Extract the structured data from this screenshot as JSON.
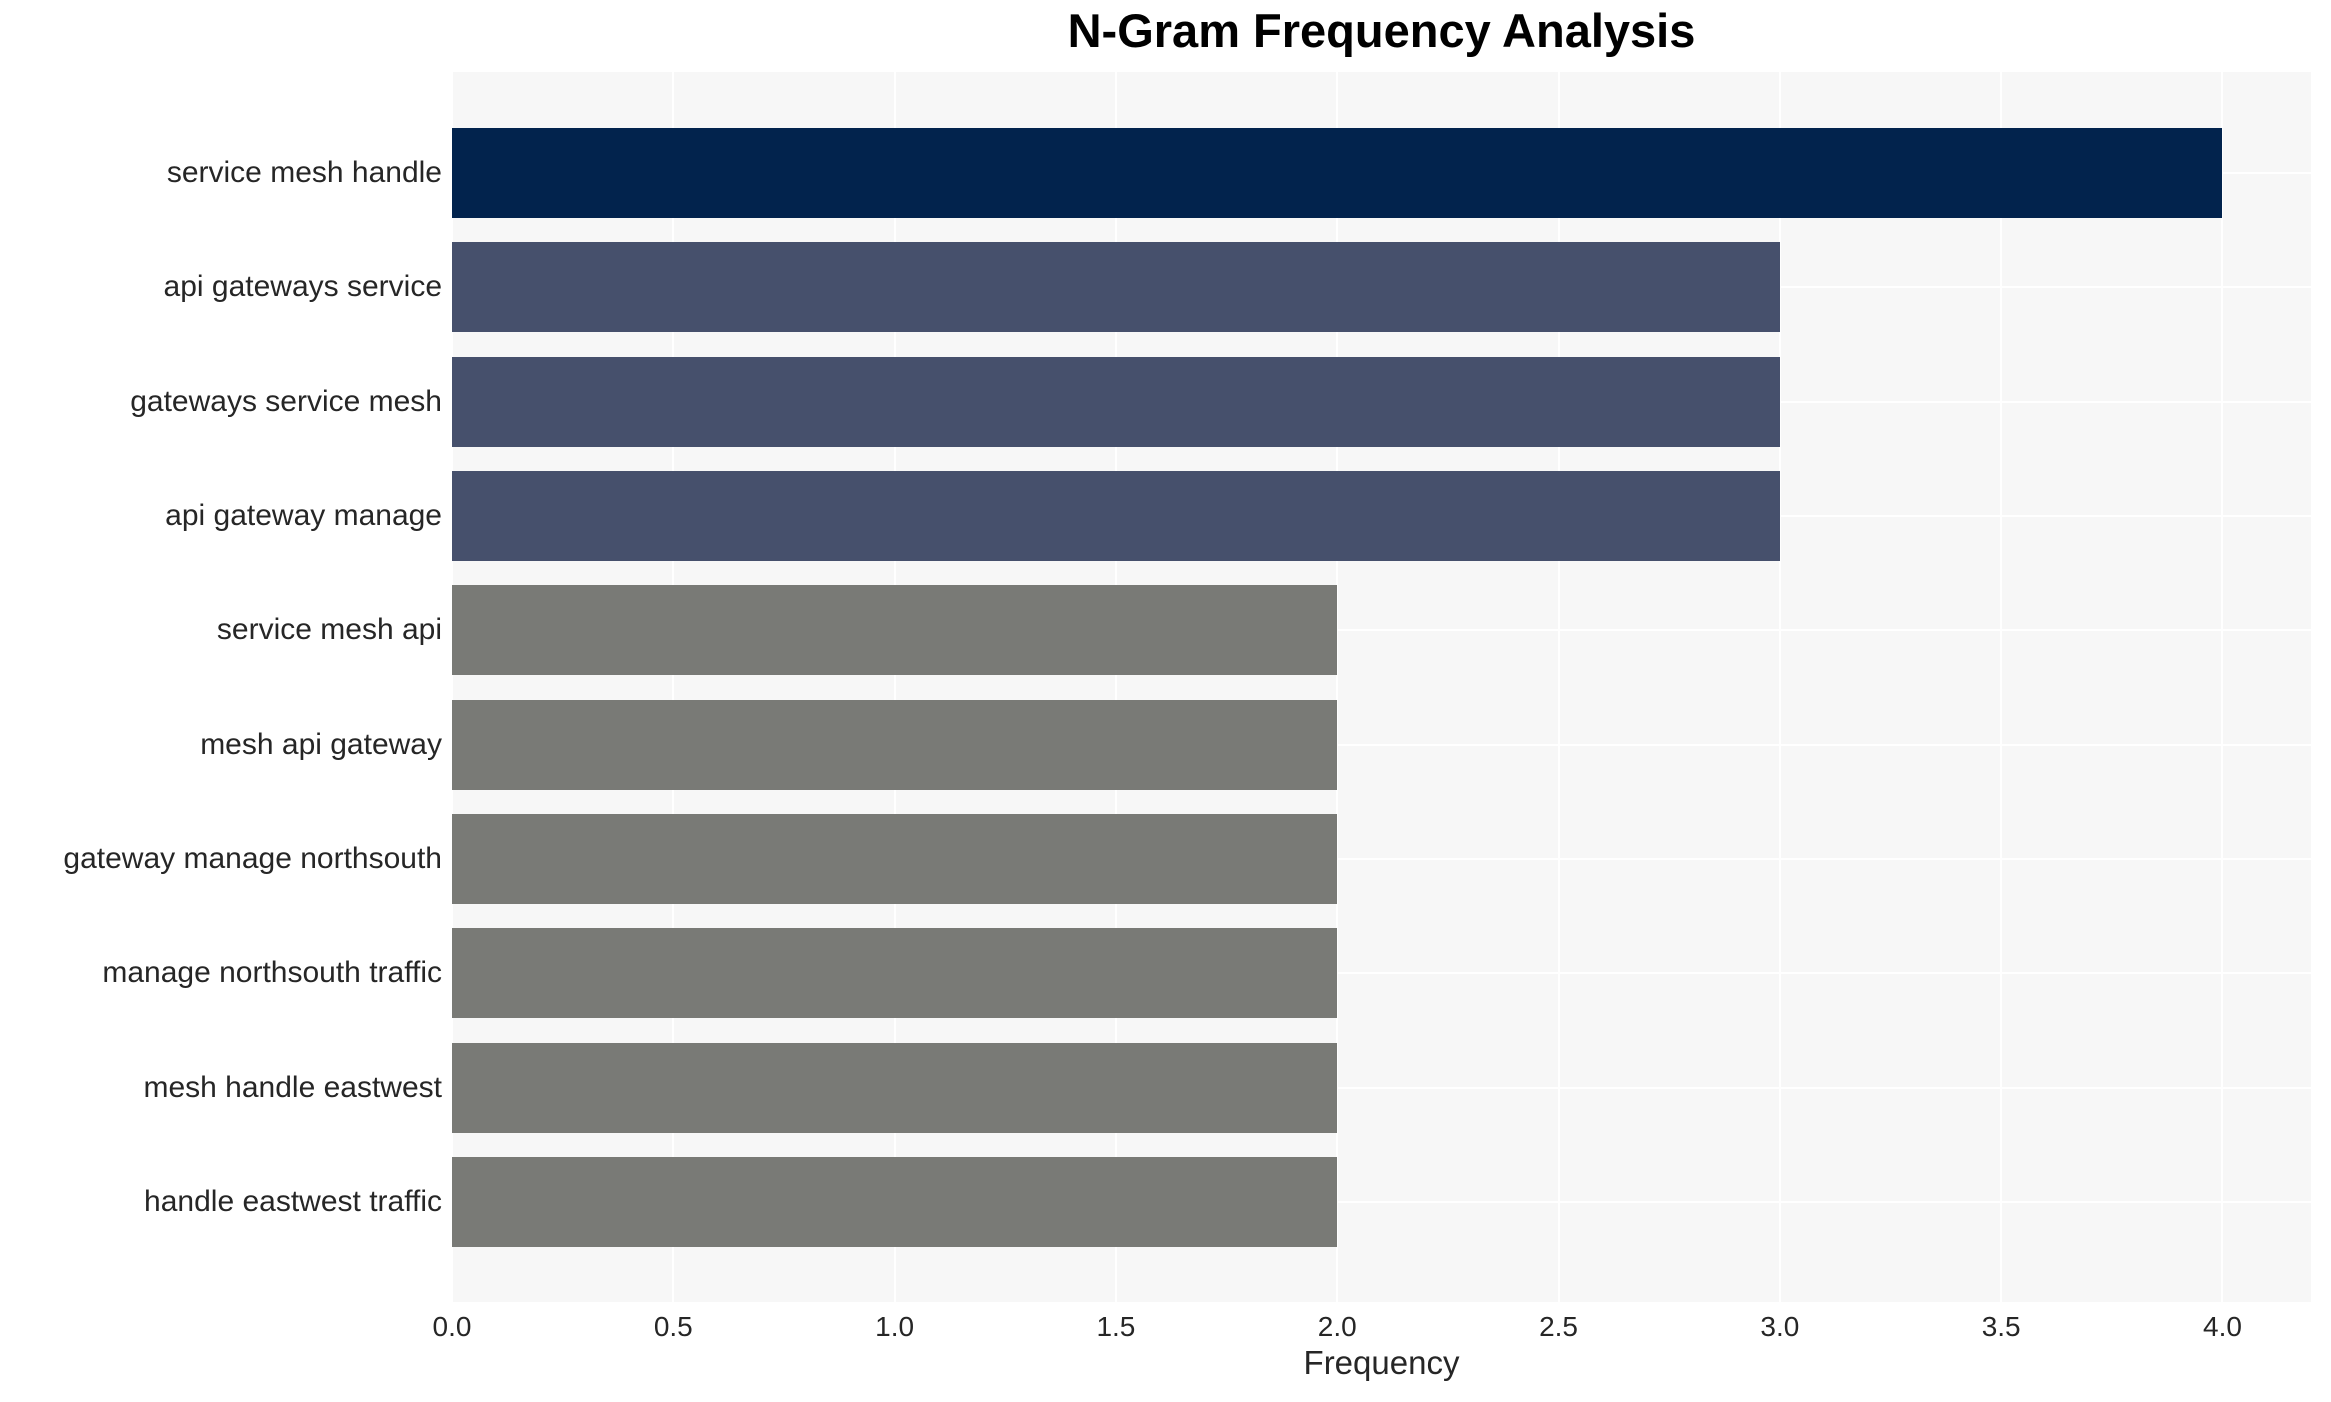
{
  "chart_data": {
    "type": "bar",
    "orientation": "horizontal",
    "title": "N-Gram Frequency Analysis",
    "xlabel": "Frequency",
    "ylabel": "",
    "categories": [
      "service mesh handle",
      "api gateways service",
      "gateways service mesh",
      "api gateway manage",
      "service mesh api",
      "mesh api gateway",
      "gateway manage northsouth",
      "manage northsouth traffic",
      "mesh handle eastwest",
      "handle eastwest traffic"
    ],
    "values": [
      4,
      3,
      3,
      3,
      2,
      2,
      2,
      2,
      2,
      2
    ],
    "bar_colors": [
      "#02234d",
      "#46506c",
      "#46506c",
      "#46506c",
      "#797a76",
      "#797a76",
      "#797a76",
      "#797a76",
      "#797a76",
      "#797a76"
    ],
    "xlim": [
      0,
      4.2
    ],
    "xticks": [
      "0.0",
      "0.5",
      "1.0",
      "1.5",
      "2.0",
      "2.5",
      "3.0",
      "3.5",
      "4.0"
    ],
    "grid": true,
    "legend_position": "none",
    "plot_bg_color": "#f7f7f7",
    "gridline_color": "#ffffff",
    "title_color": "#000000",
    "tick_label_color": "#262626"
  }
}
